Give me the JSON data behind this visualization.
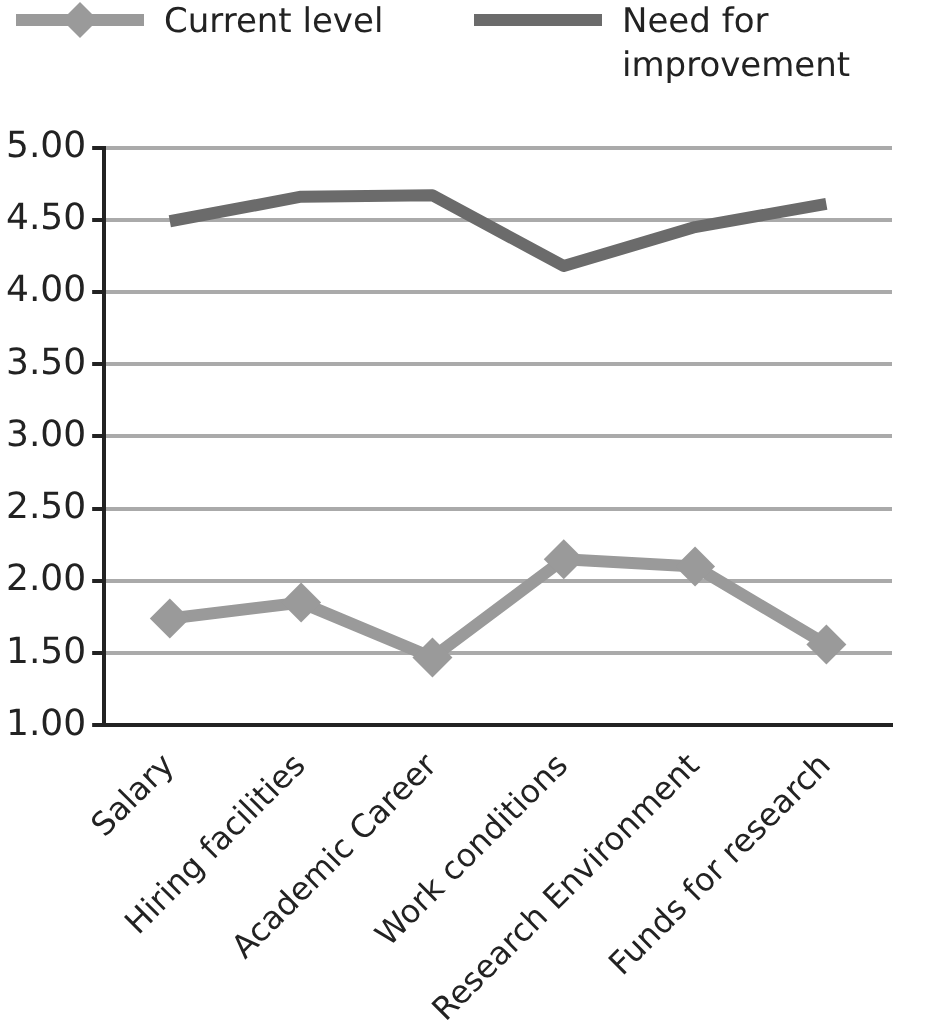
{
  "chart_data": {
    "type": "line",
    "categories": [
      "Salary",
      "Hiring facilities",
      "Academic Career",
      "Work conditions",
      "Research Environment",
      "Funds for research"
    ],
    "series": [
      {
        "name": "Current level",
        "color": "#9a9a9a",
        "marker": "diamond",
        "values": [
          1.74,
          1.85,
          1.47,
          2.15,
          2.1,
          1.56
        ]
      },
      {
        "name": "Need for improvement",
        "color": "#6b6b6b",
        "marker": "none",
        "values": [
          4.49,
          4.66,
          4.67,
          4.18,
          4.45,
          4.61
        ]
      }
    ],
    "ylim": [
      1,
      5
    ],
    "yticks": [
      {
        "value": 1,
        "label": "1.00"
      },
      {
        "value": 1.5,
        "label": "1.50"
      },
      {
        "value": 2,
        "label": "2.00"
      },
      {
        "value": 2.5,
        "label": "2.50"
      },
      {
        "value": 3,
        "label": "3.00"
      },
      {
        "value": 3.5,
        "label": "3.50"
      },
      {
        "value": 4,
        "label": "4.00"
      },
      {
        "value": 4.5,
        "label": "4.50"
      },
      {
        "value": 5,
        "label": "5.00"
      }
    ],
    "grid": "y",
    "legend": "top",
    "line_style": "solid"
  }
}
